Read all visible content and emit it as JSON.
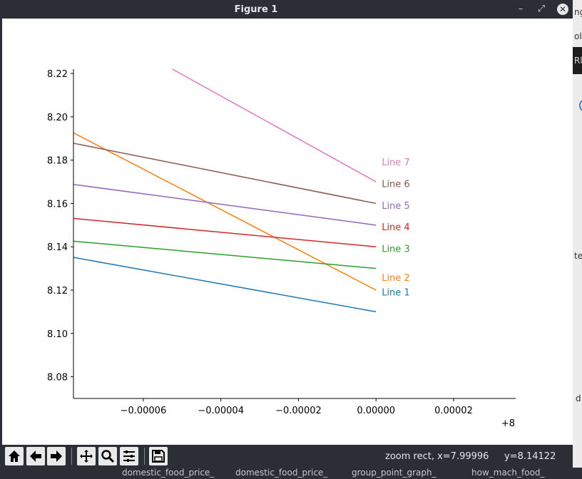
{
  "window": {
    "title": "Figure 1",
    "minimize_glyph": "–",
    "maximize_glyph": "⤢",
    "close_glyph": "✕"
  },
  "toolbar": {
    "status": "zoom rect, x=7.99996",
    "status_y": "y=8.14122"
  },
  "background": {
    "right_frag_1": "ng",
    "right_frag_2": "ol",
    "right_frag_3": "Rl",
    "right_frag_4": "te",
    "right_frag_5": "d",
    "tabs": [
      "domestic_food_price_",
      "domestic_food_price_",
      "group_point_graph_",
      "how_mach_food_"
    ]
  },
  "chart_data": {
    "type": "line",
    "title": "",
    "xlabel": "",
    "ylabel": "",
    "x_offset_label": "+8",
    "xlim": [
      -7.8e-05,
      3.6e-05
    ],
    "ylim": [
      8.07,
      8.222
    ],
    "x_ticks": [
      -6e-05,
      -4e-05,
      -2e-05,
      0.0,
      2e-05
    ],
    "x_tick_labels": [
      "−0.00006",
      "−0.00004",
      "−0.00002",
      "0.00000",
      "0.00002"
    ],
    "y_ticks": [
      8.08,
      8.1,
      8.12,
      8.14,
      8.16,
      8.18,
      8.2,
      8.22
    ],
    "y_tick_labels": [
      "8.08",
      "8.10",
      "8.12",
      "8.14",
      "8.16",
      "8.18",
      "8.20",
      "8.22"
    ],
    "grid": false,
    "series": [
      {
        "name": "Line 1",
        "color": "#1f77b4",
        "x": [
          -7.8e-05,
          0.0
        ],
        "y": [
          8.1351,
          8.11
        ]
      },
      {
        "name": "Line 2",
        "color": "#ff7f0e",
        "x": [
          -7.8e-05,
          0.0
        ],
        "y": [
          8.1926,
          8.12
        ]
      },
      {
        "name": "Line 3",
        "color": "#2ca02c",
        "x": [
          -7.8e-05,
          0.0
        ],
        "y": [
          8.1426,
          8.13
        ]
      },
      {
        "name": "Line 4",
        "color": "#d62728",
        "x": [
          -7.8e-05,
          0.0
        ],
        "y": [
          8.1531,
          8.14
        ]
      },
      {
        "name": "Line 5",
        "color": "#9467bd",
        "x": [
          -7.8e-05,
          0.0
        ],
        "y": [
          8.1688,
          8.15
        ]
      },
      {
        "name": "Line 6",
        "color": "#8c564b",
        "x": [
          -7.8e-05,
          0.0
        ],
        "y": [
          8.1878,
          8.16
        ]
      },
      {
        "name": "Line 7",
        "color": "#e377c2",
        "x": [
          -5.25e-05,
          0.0
        ],
        "y": [
          8.222,
          8.17
        ]
      }
    ]
  }
}
